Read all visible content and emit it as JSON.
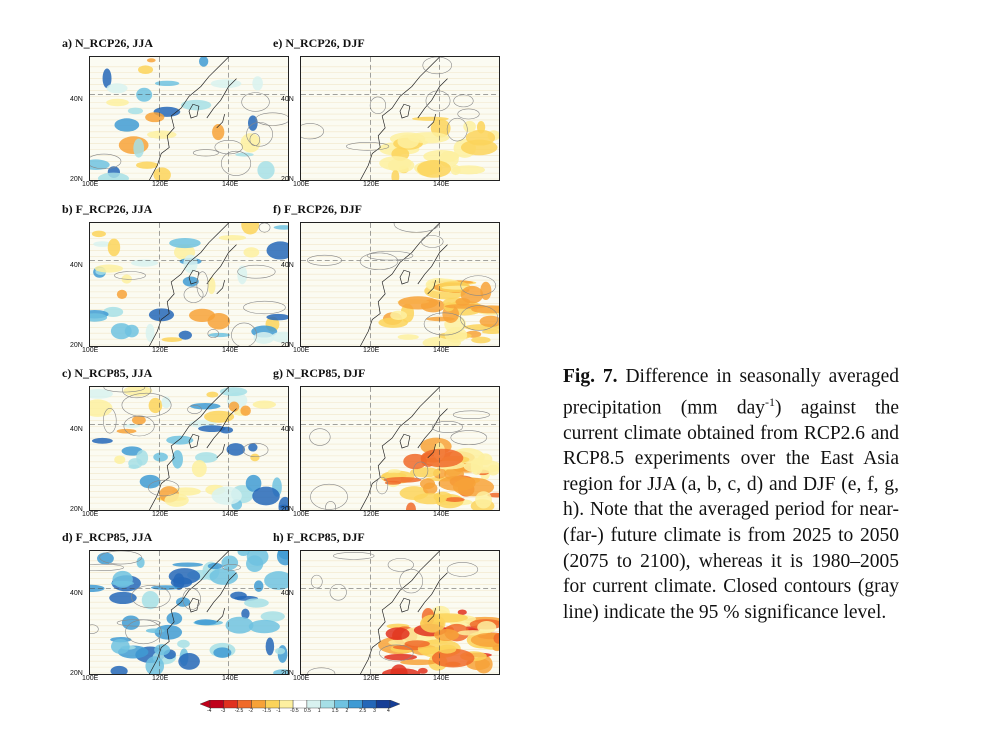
{
  "panels": [
    {
      "id": "a",
      "title": "a) N_RCP26, JJA",
      "season": "JJA"
    },
    {
      "id": "e",
      "title": "e) N_RCP26, DJF",
      "season": "DJF"
    },
    {
      "id": "b",
      "title": "b) F_RCP26, JJA",
      "season": "JJA"
    },
    {
      "id": "f",
      "title": "f) F_RCP26, DJF",
      "season": "DJF"
    },
    {
      "id": "c",
      "title": "c) N_RCP85, JJA",
      "season": "JJA"
    },
    {
      "id": "g",
      "title": "g) N_RCP85, DJF",
      "season": "DJF"
    },
    {
      "id": "d",
      "title": "d) F_RCP85, JJA",
      "season": "JJA"
    },
    {
      "id": "h",
      "title": "h) F_RCP85, DJF",
      "season": "DJF"
    }
  ],
  "axes": {
    "y_ticks": [
      "40N",
      "20N"
    ],
    "x_ticks": [
      "100E",
      "120E",
      "140E"
    ]
  },
  "colorbar": {
    "labels": [
      "-4",
      "-3",
      "-2.5",
      "-2",
      "-1.5",
      "-1",
      "-0.5",
      "0.5",
      "1",
      "1.5",
      "2",
      "2.5",
      "3",
      "4"
    ],
    "colors": [
      "#c0001a",
      "#e0301e",
      "#f06a2a",
      "#f7a238",
      "#fbd35a",
      "#fdf0a0",
      "#ffffff",
      "#d8f2f0",
      "#a6dfe6",
      "#6fc2e0",
      "#3f9bd4",
      "#2467b8",
      "#163e96"
    ]
  },
  "caption": {
    "label": "Fig. 7.",
    "text_1": " Difference in seasonally averaged precipitation (mm day",
    "sup": "-1",
    "text_2": ") against the current climate obtained from RCP2.6 and RCP8.5 experiments over the East Asia region for JJA (a, b, c, d) and DJF (e, f, g, h). Note that the averaged period for near- (far-) future climate is from 2025 to 2050 (2075 to 2100), whereas it is 1980–2005 for current climate. Closed contours (gray line) indicate the 95 % significance level."
  }
}
